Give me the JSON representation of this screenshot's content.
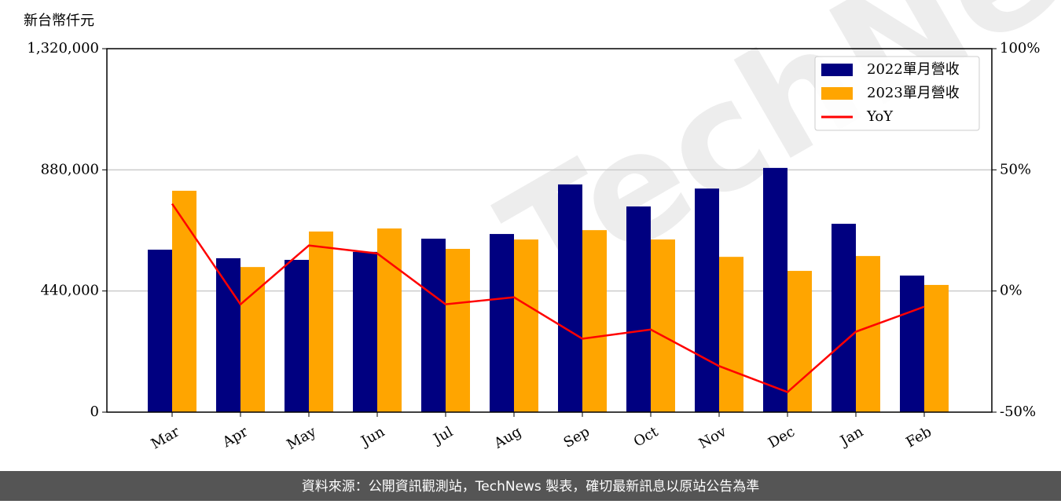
{
  "chart_data": {
    "type": "bar_line",
    "y_label": "新台幣仟元",
    "watermark": "TechNews",
    "footer": "資料來源：公開資訊觀測站，TechNews 製表，確切最新訊息以原站公告為準",
    "categories": [
      "Mar",
      "Apr",
      "May",
      "Jun",
      "Jul",
      "Aug",
      "Sep",
      "Oct",
      "Nov",
      "Dec",
      "Jan",
      "Feb"
    ],
    "series": [
      {
        "name": "2022單月營收",
        "type": "bar",
        "color": "#000080",
        "values": [
          590000,
          559000,
          553000,
          582000,
          630000,
          647000,
          827000,
          747000,
          812000,
          887000,
          684000,
          496000
        ]
      },
      {
        "name": "2023單月營收",
        "type": "bar",
        "color": "#ffa500",
        "values": [
          804000,
          527000,
          656000,
          667000,
          593000,
          627000,
          661000,
          627000,
          564000,
          513000,
          567000,
          462000
        ]
      },
      {
        "name": "YoY",
        "type": "line",
        "axis": "y2",
        "color": "#ff0000",
        "values": [
          36,
          -5.5,
          18.8,
          15.5,
          -5.5,
          -2.6,
          -19.7,
          -15.9,
          -31,
          -41.7,
          -16.8,
          -6.5
        ]
      }
    ],
    "ylim": [
      0,
      1320000
    ],
    "yticks": [
      {
        "value": 0,
        "label": "0"
      },
      {
        "value": 440000,
        "label": "440,000"
      },
      {
        "value": 880000,
        "label": "880,000"
      },
      {
        "value": 1320000,
        "label": "1,320,000"
      }
    ],
    "y2lim": [
      -50,
      100
    ],
    "y2ticks": [
      {
        "value": -50,
        "label": "-50%"
      },
      {
        "value": 0,
        "label": "0%"
      },
      {
        "value": 50,
        "label": "50%"
      },
      {
        "value": 100,
        "label": "100%"
      }
    ],
    "grid": true,
    "legend": "upper right"
  }
}
